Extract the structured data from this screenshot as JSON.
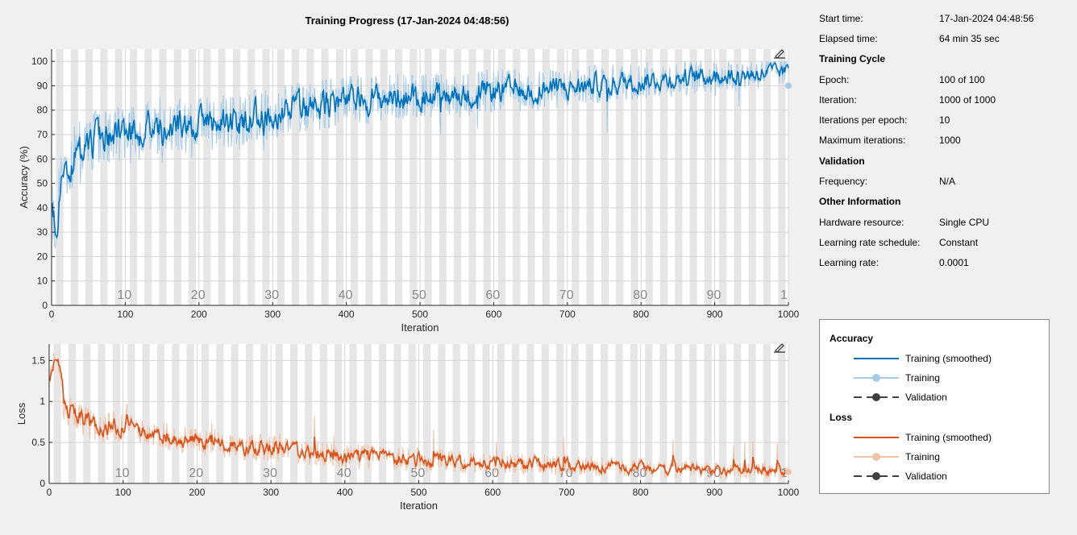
{
  "title": "Training Progress (17-Jan-2024 04:48:56)",
  "info": {
    "rows": [
      {
        "type": "kv",
        "key": "Start time:",
        "value": "17-Jan-2024 04:48:56"
      },
      {
        "type": "kv",
        "key": "Elapsed time:",
        "value": "64 min 35 sec"
      },
      {
        "type": "header",
        "key": "Training Cycle"
      },
      {
        "type": "kv",
        "key": "Epoch:",
        "value": "100 of 100"
      },
      {
        "type": "kv",
        "key": "Iteration:",
        "value": "1000 of 1000"
      },
      {
        "type": "kv",
        "key": "Iterations per epoch:",
        "value": "10"
      },
      {
        "type": "kv",
        "key": "Maximum iterations:",
        "value": "1000"
      },
      {
        "type": "header",
        "key": "Validation"
      },
      {
        "type": "kv",
        "key": "Frequency:",
        "value": "N/A"
      },
      {
        "type": "header",
        "key": "Other Information"
      },
      {
        "type": "kv",
        "key": "Hardware resource:",
        "value": "Single CPU"
      },
      {
        "type": "kv",
        "key": "Learning rate schedule:",
        "value": "Constant"
      },
      {
        "type": "kv",
        "key": "Learning rate:",
        "value": "0.0001"
      }
    ]
  },
  "legend": {
    "groups": [
      {
        "name": "Accuracy",
        "items": [
          {
            "label": "Training (smoothed)",
            "color": "#0072bd",
            "style": "line"
          },
          {
            "label": "Training",
            "color": "#a6cbe7",
            "style": "line-dot"
          },
          {
            "label": "Validation",
            "color": "#404040",
            "style": "dash-dot"
          }
        ]
      },
      {
        "name": "Loss",
        "items": [
          {
            "label": "Training (smoothed)",
            "color": "#d95319",
            "style": "line"
          },
          {
            "label": "Training",
            "color": "#f0c2a8",
            "style": "line-dot"
          },
          {
            "label": "Validation",
            "color": "#404040",
            "style": "dash-dot"
          }
        ]
      }
    ]
  },
  "chart_data": [
    {
      "type": "line",
      "name": "accuracy",
      "xlabel": "Iteration",
      "ylabel": "Accuracy (%)",
      "xlim": [
        0,
        1000
      ],
      "ylim": [
        0,
        105
      ],
      "xticks": [
        0,
        100,
        200,
        300,
        400,
        500,
        600,
        700,
        800,
        900,
        1000
      ],
      "yticks": [
        0,
        10,
        20,
        30,
        40,
        50,
        60,
        70,
        80,
        90,
        100
      ],
      "epoch_labels": [
        "10",
        "20",
        "30",
        "40",
        "50",
        "60",
        "70",
        "80",
        "90",
        "1"
      ],
      "epochs": 100,
      "iterations_per_epoch": 10,
      "smoothed_color": "#0072bd",
      "raw_color": "#a6cbe7",
      "trend": [
        [
          0,
          40
        ],
        [
          5,
          28
        ],
        [
          10,
          50
        ],
        [
          30,
          62
        ],
        [
          60,
          68
        ],
        [
          100,
          70
        ],
        [
          150,
          74
        ],
        [
          200,
          74
        ],
        [
          250,
          76
        ],
        [
          300,
          79
        ],
        [
          350,
          81
        ],
        [
          400,
          84
        ],
        [
          450,
          85
        ],
        [
          500,
          86
        ],
        [
          550,
          86
        ],
        [
          600,
          88
        ],
        [
          650,
          88
        ],
        [
          700,
          89
        ],
        [
          750,
          91
        ],
        [
          800,
          92
        ],
        [
          850,
          93
        ],
        [
          900,
          94
        ],
        [
          950,
          95
        ],
        [
          1000,
          96
        ]
      ],
      "final_value": 90
    },
    {
      "type": "line",
      "name": "loss",
      "xlabel": "Iteration",
      "ylabel": "Loss",
      "xlim": [
        0,
        1000
      ],
      "ylim": [
        0,
        1.7
      ],
      "xticks": [
        0,
        100,
        200,
        300,
        400,
        500,
        600,
        700,
        800,
        900,
        1000
      ],
      "yticks": [
        0,
        0.5,
        1,
        1.5
      ],
      "ytick_labels": [
        "0",
        "0.5",
        "1",
        "1.5"
      ],
      "epoch_labels": [
        "10",
        "20",
        "30",
        "40",
        "50",
        "60",
        "70",
        "80",
        "90",
        "1"
      ],
      "epochs": 100,
      "iterations_per_epoch": 10,
      "smoothed_color": "#d95319",
      "raw_color": "#f0c2a8",
      "trend": [
        [
          0,
          1.2
        ],
        [
          10,
          1.55
        ],
        [
          20,
          0.95
        ],
        [
          40,
          0.8
        ],
        [
          60,
          0.7
        ],
        [
          100,
          0.68
        ],
        [
          150,
          0.6
        ],
        [
          200,
          0.52
        ],
        [
          250,
          0.47
        ],
        [
          300,
          0.42
        ],
        [
          350,
          0.38
        ],
        [
          400,
          0.34
        ],
        [
          450,
          0.31
        ],
        [
          500,
          0.29
        ],
        [
          550,
          0.27
        ],
        [
          600,
          0.25
        ],
        [
          650,
          0.24
        ],
        [
          700,
          0.22
        ],
        [
          750,
          0.2
        ],
        [
          800,
          0.19
        ],
        [
          850,
          0.18
        ],
        [
          900,
          0.16
        ],
        [
          950,
          0.16
        ],
        [
          1000,
          0.15
        ]
      ],
      "final_value": 0.14
    }
  ]
}
